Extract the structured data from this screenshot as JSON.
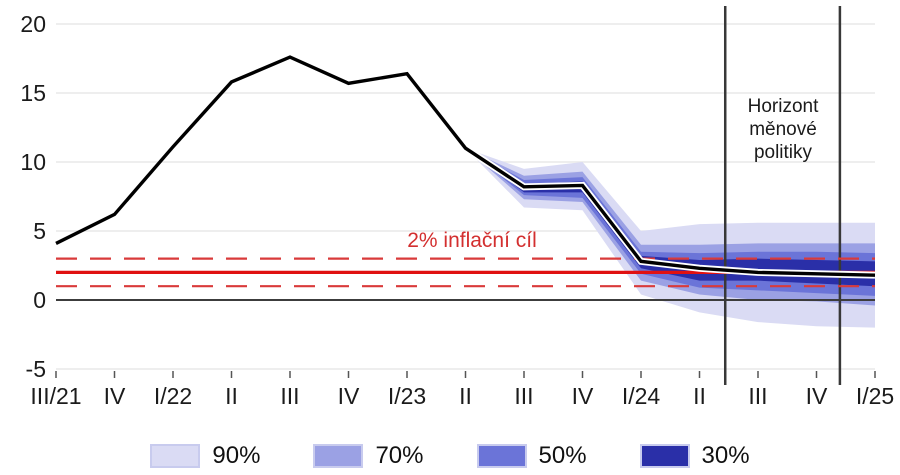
{
  "chart_data": {
    "type": "line",
    "title": "",
    "categories": [
      "III/21",
      "IV",
      "I/22",
      "II",
      "III",
      "IV",
      "I/23",
      "II",
      "III",
      "IV",
      "I/24",
      "II",
      "III",
      "IV",
      "I/25"
    ],
    "line_values": [
      4.1,
      6.2,
      11.1,
      15.8,
      17.6,
      15.7,
      16.4,
      11.0,
      8.2,
      8.3,
      2.8,
      2.3,
      2.0,
      1.9,
      1.8
    ],
    "fan_start_index": 7,
    "fan": {
      "p90_top": [
        11.0,
        9.5,
        10.0,
        5.0,
        5.5,
        5.6,
        5.6,
        5.6
      ],
      "p70_top": [
        11.0,
        9.0,
        9.3,
        4.0,
        4.0,
        4.1,
        4.1,
        4.1
      ],
      "p50_top": [
        11.0,
        8.7,
        8.9,
        3.5,
        3.4,
        3.5,
        3.5,
        3.4
      ],
      "p30_top": [
        11.0,
        8.4,
        8.6,
        3.2,
        2.9,
        3.0,
        2.9,
        2.8
      ],
      "p30_bottom": [
        11.0,
        7.8,
        7.8,
        2.3,
        1.4,
        1.4,
        1.2,
        1.0
      ],
      "p50_bottom": [
        11.0,
        7.6,
        7.4,
        1.9,
        0.9,
        0.7,
        0.5,
        0.3
      ],
      "p70_bottom": [
        11.0,
        7.3,
        7.1,
        1.4,
        0.4,
        0.0,
        -0.1,
        -0.4
      ],
      "p90_bottom": [
        11.0,
        6.7,
        6.5,
        0.4,
        -0.9,
        -1.6,
        -1.9,
        -2.0
      ]
    },
    "y_ticks": [
      20,
      15,
      10,
      5,
      0,
      -5
    ],
    "ylim": [
      -5.8,
      21.5
    ],
    "target_lines": {
      "solid": 2,
      "dashed": [
        3,
        1
      ]
    },
    "vertical_lines_index": [
      11.44,
      13.4
    ],
    "grid": "on",
    "legend_position": "bottom"
  },
  "annotations": {
    "target_label": "2% inflační cíl",
    "horizon_label": "Horizont měnové politiky"
  },
  "legend": {
    "items": [
      {
        "label": "90%",
        "color": "#dadbf4"
      },
      {
        "label": "70%",
        "color": "#9ba1e4"
      },
      {
        "label": "50%",
        "color": "#6b74d8"
      },
      {
        "label": "30%",
        "color": "#2a2fa8"
      }
    ]
  },
  "colors": {
    "band90": "#dadbf4",
    "band70": "#9ba1e4",
    "band50": "#6b74d8",
    "band30": "#2a2fa8",
    "line": "#000000",
    "line_halo": "#ffffff",
    "target_red_solid": "#e01111",
    "target_red_dashed": "#d93a3a",
    "target_text": "#d32f2f",
    "grid": "#e9e9e9",
    "zero_line": "#3c3c3c",
    "horizon_line": "#383838",
    "axis_text": "#1b1b1b",
    "tick": "#555555"
  }
}
